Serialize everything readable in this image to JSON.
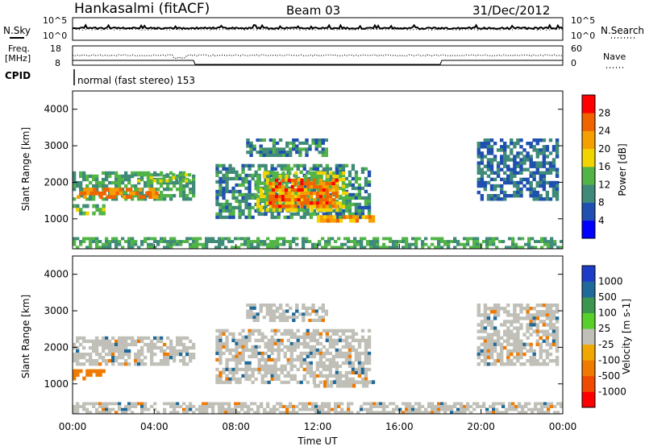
{
  "header": {
    "station": "Hankasalmi (fitACF)",
    "beam": "Beam 03",
    "date": "31/Dec/2012"
  },
  "top_panels": {
    "nsky_label": "N.Sky",
    "nsearch_label": "N.Search",
    "noise_ticks": [
      "10^5",
      "10^0"
    ],
    "freq_label_line1": "Freq.",
    "freq_label_line2": "[MHz]",
    "freq_ticks": [
      "18",
      "8"
    ],
    "nave_label": "Nave",
    "nave_ticks": [
      "60",
      "0"
    ],
    "cpid_label": "CPID",
    "cpid_text": "normal (fast stereo) 153"
  },
  "colors": {
    "power_scale": [
      "#0000ff",
      "#1f4fb0",
      "#3f8a78",
      "#52b447",
      "#f2d400",
      "#f5a000",
      "#f06400",
      "#ff0000"
    ],
    "velocity_scale": [
      "#1e3cc8",
      "#1f6a9a",
      "#3c9650",
      "#58d02a",
      "#c0c0b8",
      "#f0a800",
      "#f07a00",
      "#f04a00",
      "#ff0000"
    ]
  },
  "chart_data": [
    {
      "type": "heatmap",
      "title": "",
      "xlabel": "Time UT",
      "ylabel": "Slant Range [km]",
      "colorbar_label": "Power [dB]",
      "colorbar_ticks": [
        "28",
        "24",
        "20",
        "16",
        "12",
        "8",
        "4"
      ],
      "xlim": [
        0,
        24
      ],
      "ylim": [
        180,
        4500
      ],
      "x_ticks": [
        "00:00",
        "04:00",
        "08:00",
        "12:00",
        "16:00",
        "20:00",
        "00:00"
      ],
      "y_ticks": [
        "1000",
        "2000",
        "3000",
        "4000"
      ],
      "regions": [
        {
          "t": [
            0.0,
            6.0
          ],
          "r": [
            1500,
            2300
          ],
          "level": 12
        },
        {
          "t": [
            0.0,
            1.6
          ],
          "r": [
            1100,
            1400
          ],
          "level": 14
        },
        {
          "t": [
            0.2,
            4.2
          ],
          "r": [
            1550,
            1850
          ],
          "level": 24
        },
        {
          "t": [
            3.0,
            5.8
          ],
          "r": [
            2000,
            2250
          ],
          "level": 14
        },
        {
          "t": [
            7.0,
            14.6
          ],
          "r": [
            1000,
            2500
          ],
          "level": 10
        },
        {
          "t": [
            9.0,
            13.5
          ],
          "r": [
            1200,
            2300
          ],
          "level": 16
        },
        {
          "t": [
            9.6,
            13.0
          ],
          "r": [
            1300,
            2100
          ],
          "level": 26
        },
        {
          "t": [
            11.8,
            14.8
          ],
          "r": [
            900,
            1100
          ],
          "level": 22
        },
        {
          "t": [
            8.5,
            12.5
          ],
          "r": [
            2700,
            3200
          ],
          "level": 10
        },
        {
          "t": [
            19.8,
            23.8
          ],
          "r": [
            1500,
            3200
          ],
          "level": 8
        },
        {
          "t": [
            0.0,
            24.0
          ],
          "r": [
            180,
            500
          ],
          "level": 12
        }
      ]
    },
    {
      "type": "heatmap",
      "title": "",
      "xlabel": "Time UT",
      "ylabel": "Slant Range [km]",
      "colorbar_label": "Velocity [m s-1]",
      "colorbar_ticks": [
        "1000",
        "500",
        "100",
        "25",
        "-25",
        "-100",
        "-500",
        "-1000"
      ],
      "xlim": [
        0,
        24
      ],
      "ylim": [
        180,
        4500
      ],
      "x_ticks": [
        "00:00",
        "04:00",
        "08:00",
        "12:00",
        "16:00",
        "20:00",
        "00:00"
      ],
      "y_ticks": [
        "1000",
        "2000",
        "3000",
        "4000"
      ],
      "regions": [
        {
          "t": [
            0.0,
            6.0
          ],
          "r": [
            1500,
            2300
          ],
          "level": 0
        },
        {
          "t": [
            0.0,
            1.6
          ],
          "r": [
            1100,
            1400
          ],
          "level": -100
        },
        {
          "t": [
            7.0,
            14.6
          ],
          "r": [
            1000,
            2500
          ],
          "level": 0
        },
        {
          "t": [
            11.8,
            14.8
          ],
          "r": [
            900,
            1100
          ],
          "level": 0
        },
        {
          "t": [
            8.5,
            12.5
          ],
          "r": [
            2700,
            3200
          ],
          "level": 0
        },
        {
          "t": [
            19.8,
            23.8
          ],
          "r": [
            1500,
            3200
          ],
          "level": 0
        },
        {
          "t": [
            0.0,
            24.0
          ],
          "r": [
            180,
            500
          ],
          "level": 0
        }
      ]
    }
  ]
}
